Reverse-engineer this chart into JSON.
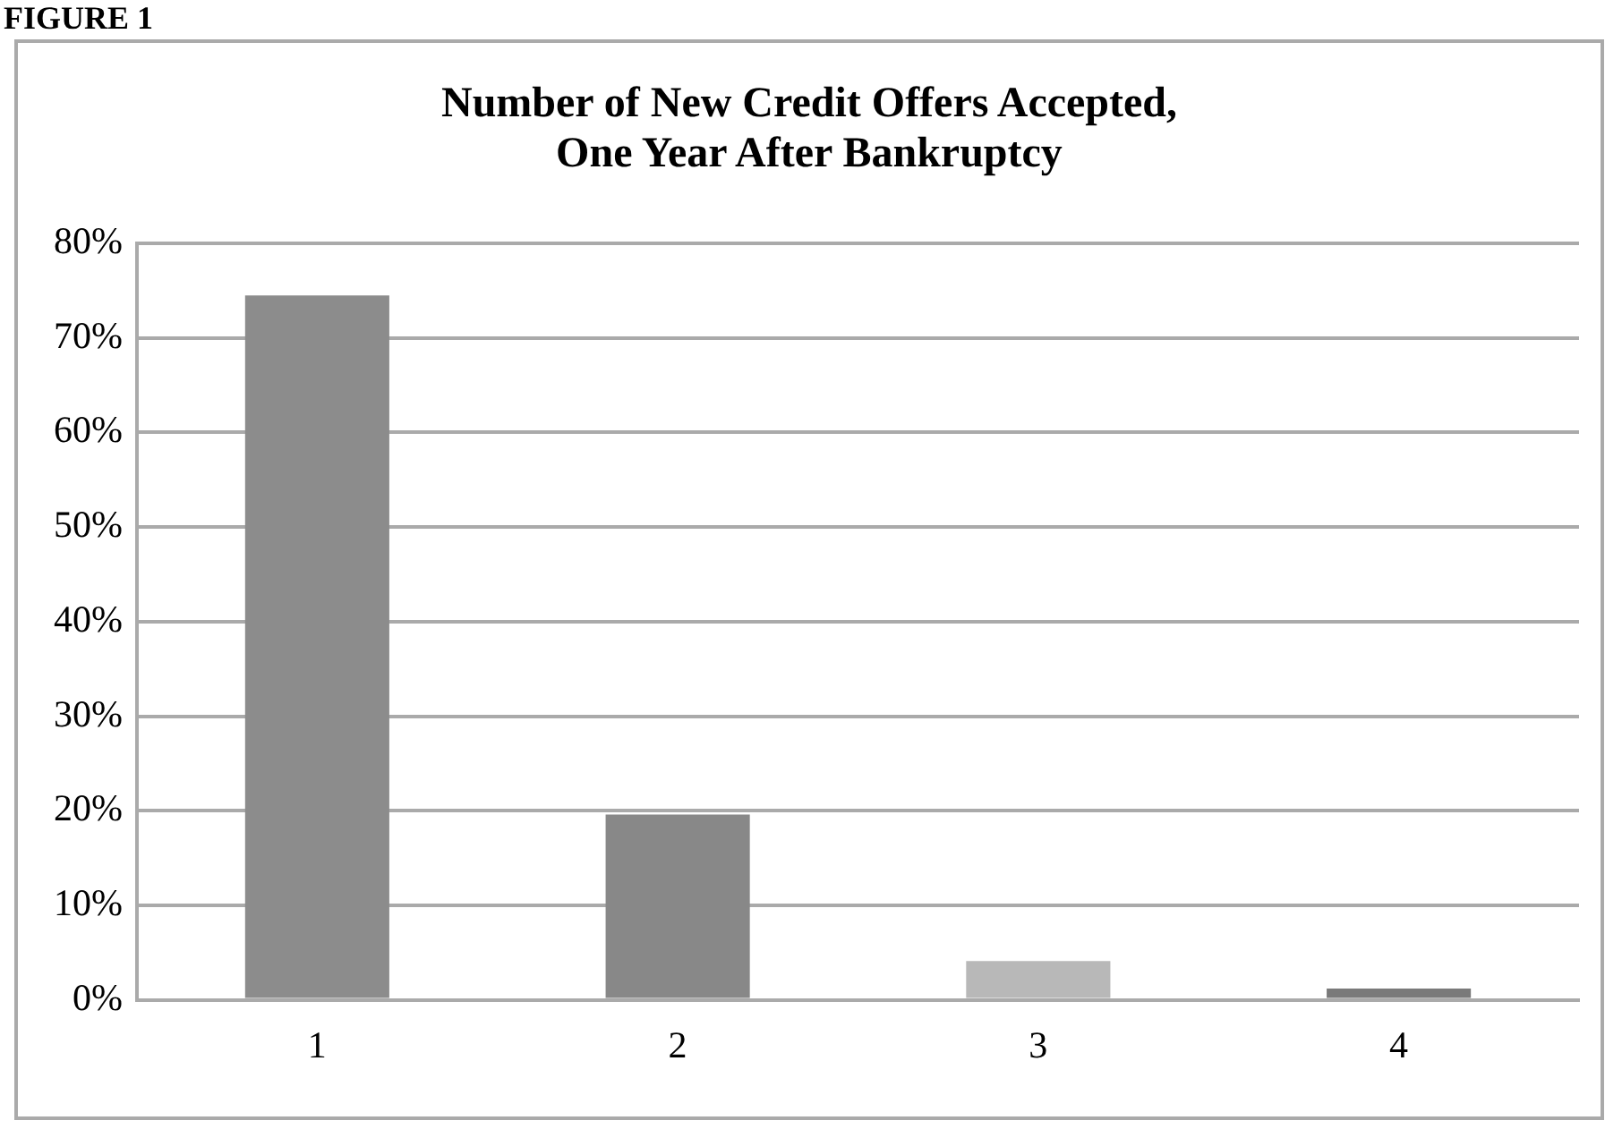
{
  "chart_data": {
    "type": "bar",
    "title": "Number of New Credit Offers Accepted,\nOne Year After Bankruptcy",
    "annotations": [
      "FIGURE 1"
    ],
    "categories": [
      "1",
      "2",
      "3",
      "4"
    ],
    "values": [
      74.5,
      19.6,
      4.1,
      1.2
    ],
    "colors": [
      "#8c8c8c",
      "#888888",
      "#b8b8b8",
      "#7a7a7a"
    ],
    "ylim": [
      0,
      80
    ],
    "yticks": [
      {
        "value": 0,
        "label": "0%"
      },
      {
        "value": 10,
        "label": "10%"
      },
      {
        "value": 20,
        "label": "20%"
      },
      {
        "value": 30,
        "label": "30%"
      },
      {
        "value": 40,
        "label": "40%"
      },
      {
        "value": 50,
        "label": "50%"
      },
      {
        "value": 60,
        "label": "60%"
      },
      {
        "value": 70,
        "label": "70%"
      },
      {
        "value": 80,
        "label": "80%"
      }
    ],
    "grid": "y",
    "legend": false
  }
}
